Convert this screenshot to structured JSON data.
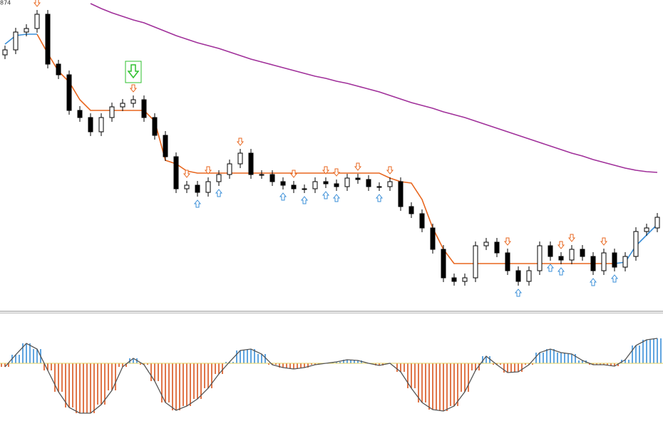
{
  "chart_data": [
    {
      "type": "candlestick",
      "label": "874",
      "open": [
        360,
        367,
        392,
        397,
        417,
        347,
        332,
        282,
        272,
        252,
        272,
        287,
        292,
        297,
        272,
        247,
        217,
        172,
        177,
        167,
        182,
        192,
        207,
        222,
        192,
        192,
        182,
        177,
        172,
        172,
        182,
        179,
        175,
        187,
        185,
        175,
        175,
        182,
        147,
        137,
        117,
        87,
        47,
        42,
        47,
        92,
        97,
        82,
        57,
        42,
        57,
        92,
        77,
        72,
        87,
        77,
        57,
        82,
        62,
        77,
        112,
        117
      ],
      "high": [
        373,
        398,
        403,
        423,
        423,
        353,
        338,
        288,
        278,
        278,
        293,
        298,
        303,
        303,
        278,
        253,
        223,
        183,
        183,
        188,
        198,
        213,
        228,
        228,
        198,
        198,
        188,
        183,
        178,
        188,
        188,
        185,
        193,
        193,
        191,
        181,
        188,
        188,
        153,
        143,
        123,
        93,
        53,
        53,
        98,
        103,
        103,
        88,
        63,
        63,
        98,
        98,
        83,
        93,
        93,
        83,
        88,
        88,
        83,
        118,
        123,
        138
      ],
      "low": [
        354,
        361,
        386,
        391,
        341,
        326,
        276,
        266,
        246,
        246,
        266,
        281,
        286,
        266,
        241,
        211,
        166,
        166,
        161,
        161,
        176,
        186,
        201,
        186,
        186,
        176,
        171,
        166,
        166,
        166,
        173,
        169,
        169,
        179,
        169,
        169,
        169,
        141,
        131,
        111,
        81,
        41,
        36,
        36,
        41,
        86,
        76,
        51,
        36,
        36,
        51,
        71,
        66,
        66,
        71,
        51,
        51,
        56,
        56,
        71,
        106,
        111
      ],
      "close": [
        367,
        392,
        397,
        417,
        347,
        332,
        282,
        272,
        252,
        272,
        287,
        292,
        297,
        272,
        247,
        217,
        172,
        177,
        167,
        182,
        192,
        207,
        222,
        192,
        192,
        182,
        177,
        172,
        172,
        182,
        179,
        175,
        187,
        185,
        175,
        175,
        182,
        147,
        137,
        117,
        87,
        47,
        42,
        47,
        92,
        97,
        82,
        57,
        42,
        57,
        92,
        77,
        72,
        87,
        77,
        57,
        82,
        62,
        77,
        112,
        117,
        132
      ],
      "up_color": "#ffffff",
      "down_color": "#000000",
      "ylim": [
        0,
        437
      ],
      "series": [
        {
          "color": "#e8661e",
          "values": [
            null,
            null,
            null,
            389,
            362,
            337,
            322,
            297,
            282,
            282,
            282,
            282,
            282,
            282,
            267,
            212,
            207,
            197,
            194,
            194,
            194,
            194,
            194,
            194,
            194,
            194,
            194,
            194,
            194,
            194,
            194,
            194,
            194,
            194,
            194,
            194,
            187,
            182,
            180,
            157,
            117,
            87,
            67,
            67,
            67,
            67,
            67,
            67,
            67,
            67,
            67,
            67,
            67,
            67,
            67,
            67,
            67,
            67,
            null,
            null,
            null,
            null
          ]
        },
        {
          "color": "#3a8fd8",
          "values": [
            375,
            387,
            389,
            389,
            null,
            null,
            null,
            null,
            null,
            null,
            null,
            null,
            null,
            null,
            null,
            null,
            null,
            null,
            null,
            null,
            null,
            null,
            null,
            null,
            null,
            null,
            null,
            null,
            null,
            null,
            null,
            null,
            null,
            null,
            null,
            null,
            null,
            null,
            null,
            null,
            null,
            null,
            null,
            null,
            null,
            null,
            null,
            null,
            null,
            null,
            null,
            null,
            null,
            null,
            null,
            null,
            null,
            67,
            69,
            92,
            107,
            122
          ]
        },
        {
          "color": "#a0309a",
          "values": [
            null,
            null,
            null,
            null,
            null,
            null,
            null,
            null,
            432,
            425,
            419,
            414,
            409,
            405,
            399,
            393,
            387,
            382,
            377,
            373,
            369,
            364,
            359,
            354,
            350,
            346,
            342,
            338,
            334,
            330,
            327,
            323,
            320,
            316,
            312,
            308,
            303,
            298,
            293,
            289,
            285,
            280,
            276,
            272,
            267,
            262,
            257,
            252,
            247,
            242,
            237,
            232,
            227,
            222,
            218,
            213,
            209,
            205,
            201,
            198,
            196,
            195
          ]
        }
      ],
      "sell_arrows": [
        3,
        12,
        17,
        19,
        22,
        27,
        30,
        31,
        33,
        36,
        47,
        52,
        53,
        56
      ],
      "sell_color": "#e8661e",
      "buy_arrows": [
        18,
        20,
        26,
        28,
        30,
        31,
        35,
        48,
        51,
        52,
        55,
        57
      ],
      "buy_color": "#3a8fd8",
      "signal_arrow": 12,
      "signal_color": "#2ec02e"
    },
    {
      "type": "bar",
      "values": [
        -5,
        12,
        28,
        20,
        -10,
        -40,
        -62,
        -70,
        -70,
        -58,
        -38,
        -5,
        7,
        -2,
        -25,
        -55,
        -66,
        -60,
        -50,
        -35,
        -15,
        2,
        18,
        20,
        13,
        -2,
        -6,
        -8,
        -6,
        -2,
        0,
        2,
        5,
        4,
        0,
        -3,
        0,
        -12,
        -35,
        -55,
        -65,
        -67,
        -60,
        -40,
        -10,
        10,
        -2,
        -13,
        -12,
        -2,
        15,
        20,
        15,
        13,
        4,
        -2,
        -2,
        -4,
        5,
        25,
        33,
        35
      ],
      "ylim": [
        -81,
        70
      ],
      "positive_color": "#3a8fd8",
      "negative_color": "#d9541e",
      "line_color": "#555555"
    }
  ]
}
